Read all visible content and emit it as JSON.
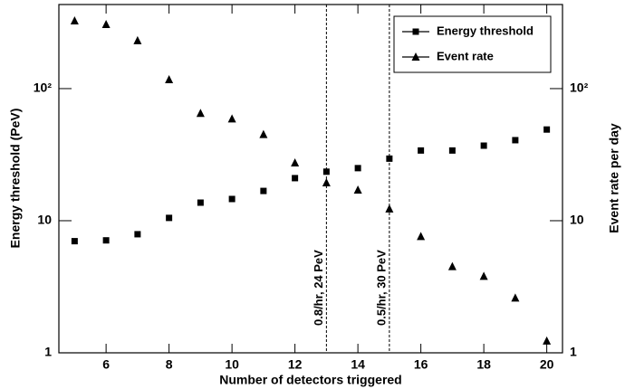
{
  "chart_data": {
    "type": "scatter",
    "xlabel": "Number of detectors triggered",
    "ylabel": "Energy threshold (PeV)",
    "y2label": "Event rate per day",
    "x": [
      5,
      6,
      7,
      8,
      9,
      10,
      11,
      12,
      13,
      14,
      15,
      16,
      17,
      18,
      19,
      20
    ],
    "series": [
      {
        "name": "Energy threshold",
        "color": "#000000",
        "marker": "square",
        "values": [
          7,
          7.1,
          7.9,
          10.5,
          13.7,
          14.6,
          16.8,
          21,
          23.5,
          25,
          29.5,
          34,
          34,
          37,
          40.7,
          49
        ]
      },
      {
        "name": "Event rate",
        "color": "#000000",
        "marker": "triangle",
        "axis": "y2",
        "values": [
          326,
          306,
          231,
          117,
          65,
          59,
          45,
          27.4,
          19.4,
          17.1,
          12.3,
          7.6,
          4.5,
          3.8,
          2.6,
          1.23
        ]
      }
    ],
    "xlim": [
      4.5,
      20.5
    ],
    "xticks": [
      6,
      8,
      10,
      12,
      14,
      16,
      18,
      20
    ],
    "ylim": [
      1,
      433
    ],
    "yticks": [
      1,
      10,
      {
        "value": 100,
        "label": "10²"
      }
    ],
    "y2lim": [
      1,
      433
    ],
    "y2ticks": [
      1,
      10,
      {
        "value": 100,
        "label": "10²"
      }
    ],
    "log_y": true,
    "legend": "upper right",
    "annotations": [
      {
        "x": 13,
        "text": "0.8/hr, 24 PeV"
      },
      {
        "x": 15,
        "text": "0.5/hr, 30 PeV"
      }
    ]
  }
}
